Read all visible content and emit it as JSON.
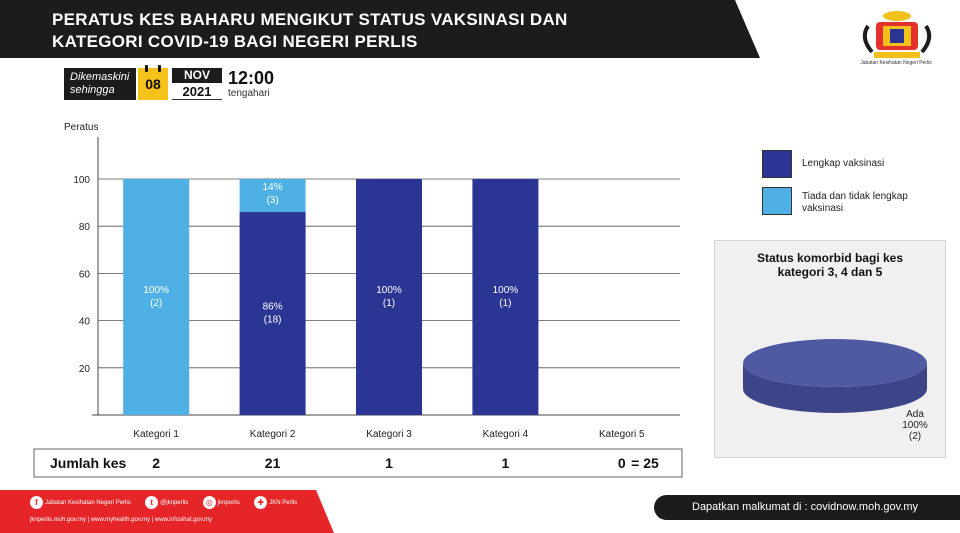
{
  "header": {
    "title_line1": "PERATUS KES BAHARU MENGIKUT STATUS VAKSINASI  DAN",
    "title_line2": "KATEGORI COVID-19 BAGI NEGERI PERLIS",
    "logo_caption": "Jabatan Kesihatan Negeri Perlis"
  },
  "updated": {
    "label_line1": "Dikemaskini",
    "label_line2": "sehingga",
    "day": "08",
    "month": "NOV",
    "year": "2021",
    "time": "12:00",
    "period": "tengahari"
  },
  "colors": {
    "lengkap": "#2b3594",
    "tiada": "#4fb0e6",
    "banner": "#1c1c1c",
    "footer_red": "#e52528",
    "pie": "#4f5aa3"
  },
  "chart_data": [
    {
      "type": "bar",
      "stacked": true,
      "ylabel": "Peratus",
      "ylim": [
        0,
        100
      ],
      "yticks": [
        20,
        40,
        60,
        80,
        100
      ],
      "grid": true,
      "categories": [
        "Kategori 1",
        "Kategori 2",
        "Kategori 3",
        "Kategori 4",
        "Kategori 5"
      ],
      "series": [
        {
          "name": "Lengkap vaksinasi",
          "values": [
            0,
            86,
            100,
            100,
            0
          ],
          "counts": [
            0,
            18,
            1,
            1,
            0
          ],
          "labels": [
            "",
            "86%",
            "100%",
            "100%",
            ""
          ],
          "count_labels": [
            "",
            "(18)",
            "(1)",
            "(1)",
            ""
          ]
        },
        {
          "name": "Tiada dan tidak lengkap vaksinasi",
          "values": [
            100,
            14,
            0,
            0,
            0
          ],
          "counts": [
            2,
            3,
            0,
            0,
            0
          ],
          "labels": [
            "100%",
            "14%",
            "",
            "",
            ""
          ],
          "count_labels": [
            "(2)",
            "(3)",
            "",
            "",
            ""
          ]
        }
      ],
      "legend": "right",
      "totals_row": {
        "label": "Jumlah kes",
        "values": [
          "2",
          "21",
          "1",
          "1",
          "0"
        ],
        "grand_total": "= 25"
      }
    },
    {
      "type": "pie",
      "title_line1": "Status komorbid bagi kes",
      "title_line2": "kategori 3, 4 dan 5",
      "slices": [
        {
          "name": "Ada",
          "value": 100,
          "count": 2,
          "label": "Ada",
          "pct_label": "100%",
          "count_label": "(2)"
        }
      ]
    }
  ],
  "footer": {
    "social": [
      {
        "icon": "facebook-icon",
        "glyph": "f",
        "label": "Jabatan Kesihatan Negeri Perlis"
      },
      {
        "icon": "twitter-icon",
        "glyph": "t",
        "label": "@jknperlis"
      },
      {
        "icon": "instagram-icon",
        "glyph": "◎",
        "label": "jknperlis"
      },
      {
        "icon": "jkn-app-icon",
        "glyph": "✚",
        "label": "JKN Perlis"
      }
    ],
    "links": "jknperlis.moh.gov.my  |  www.myhealth.gov.my  |  www.infosihat.gov.my",
    "info": "Dapatkan malkumat di : covidnow.moh.gov.my"
  }
}
